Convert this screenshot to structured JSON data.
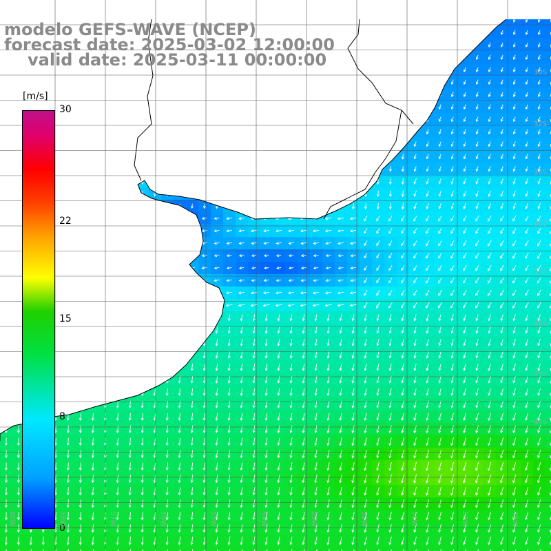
{
  "title": {
    "line1": "modelo GEFS-WAVE (NCEP)",
    "line2": "forecast date: 2025-03-02 12:00:00",
    "line3": "valid date: 2025-03-11 00:00:00"
  },
  "colorbar": {
    "unit": "[m/s]",
    "ticks": [
      {
        "label": "30",
        "value": 30
      },
      {
        "label": "22",
        "value": 22
      },
      {
        "label": "15",
        "value": 15
      },
      {
        "label": "8",
        "value": 8
      },
      {
        "label": "0",
        "value": 0
      }
    ],
    "min": 0,
    "max": 30
  },
  "grid": {
    "lat_labels": [
      "30S",
      "32S",
      "34S",
      "36S",
      "37S",
      "38S",
      "39S",
      "40S"
    ],
    "lon_labels": [
      "60W",
      "58W",
      "57W",
      "56W",
      "55W",
      "54W",
      "53W",
      "52W",
      "51W",
      "50W",
      "49W"
    ]
  },
  "colors": {
    "land": "#ffffff",
    "coast": "#000000",
    "grid": "#555555",
    "arrow": "#ffffff",
    "label": "#8a8a8a"
  },
  "map_type": "wind speed field with direction arrows over South Atlantic (Rio de la Plata / Uruguay / southern Brazil coast)"
}
